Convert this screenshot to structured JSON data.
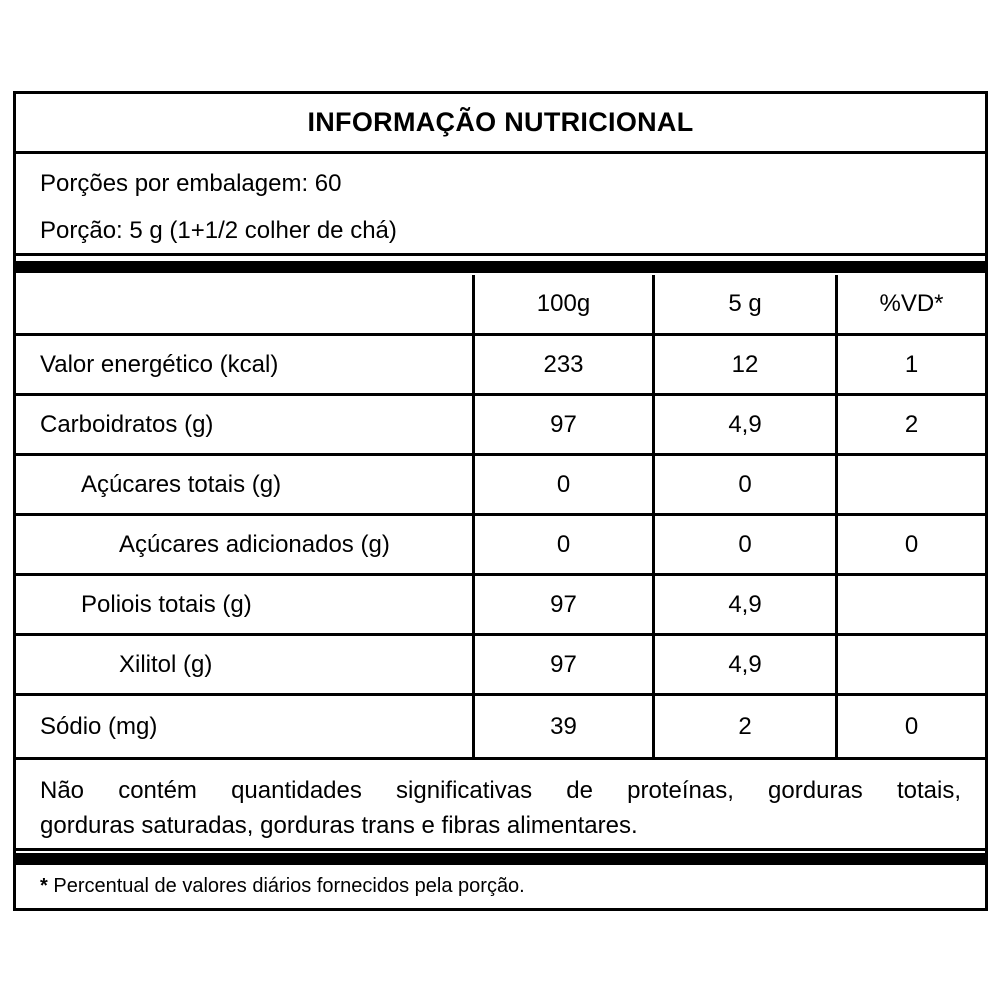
{
  "label": {
    "title": "INFORMAÇÃO NUTRICIONAL",
    "serving_info": {
      "servings_per_package": "Porções por embalagem: 60",
      "serving_size": "Porção: 5 g (1+1/2 colher de chá)"
    },
    "table": {
      "columns": {
        "item": "",
        "per_100g": "100g",
        "per_serving": "5 g",
        "daily_value": "%VD*"
      },
      "rows": [
        {
          "label": "Valor energético (kcal)",
          "per_100g": "233",
          "per_serving": "12",
          "daily_value": "1"
        },
        {
          "label": "Carboidratos (g)",
          "per_100g": "97",
          "per_serving": "4,9",
          "daily_value": "2"
        },
        {
          "label": "Açúcares totais (g)",
          "per_100g": "0",
          "per_serving": "0",
          "daily_value": ""
        },
        {
          "label": "Açúcares adicionados (g)",
          "per_100g": "0",
          "per_serving": "0",
          "daily_value": "0"
        },
        {
          "label": "Poliois totais (g)",
          "per_100g": "97",
          "per_serving": "4,9",
          "daily_value": ""
        },
        {
          "label": "Xilitol (g)",
          "per_100g": "97",
          "per_serving": "4,9",
          "daily_value": ""
        },
        {
          "label": "Sódio (mg)",
          "per_100g": "39",
          "per_serving": "2",
          "daily_value": "0"
        }
      ]
    },
    "no_significant_amounts": {
      "line1": "Não contém quantidades significativas de proteínas, gorduras totais,",
      "line2": "gorduras saturadas, gorduras trans e fibras alimentares."
    },
    "footnote": {
      "marker": "*",
      "text": " Percentual de valores diários fornecidos pela porção."
    },
    "colors": {
      "border": "#000000",
      "text": "#000000",
      "background": "#ffffff"
    }
  }
}
